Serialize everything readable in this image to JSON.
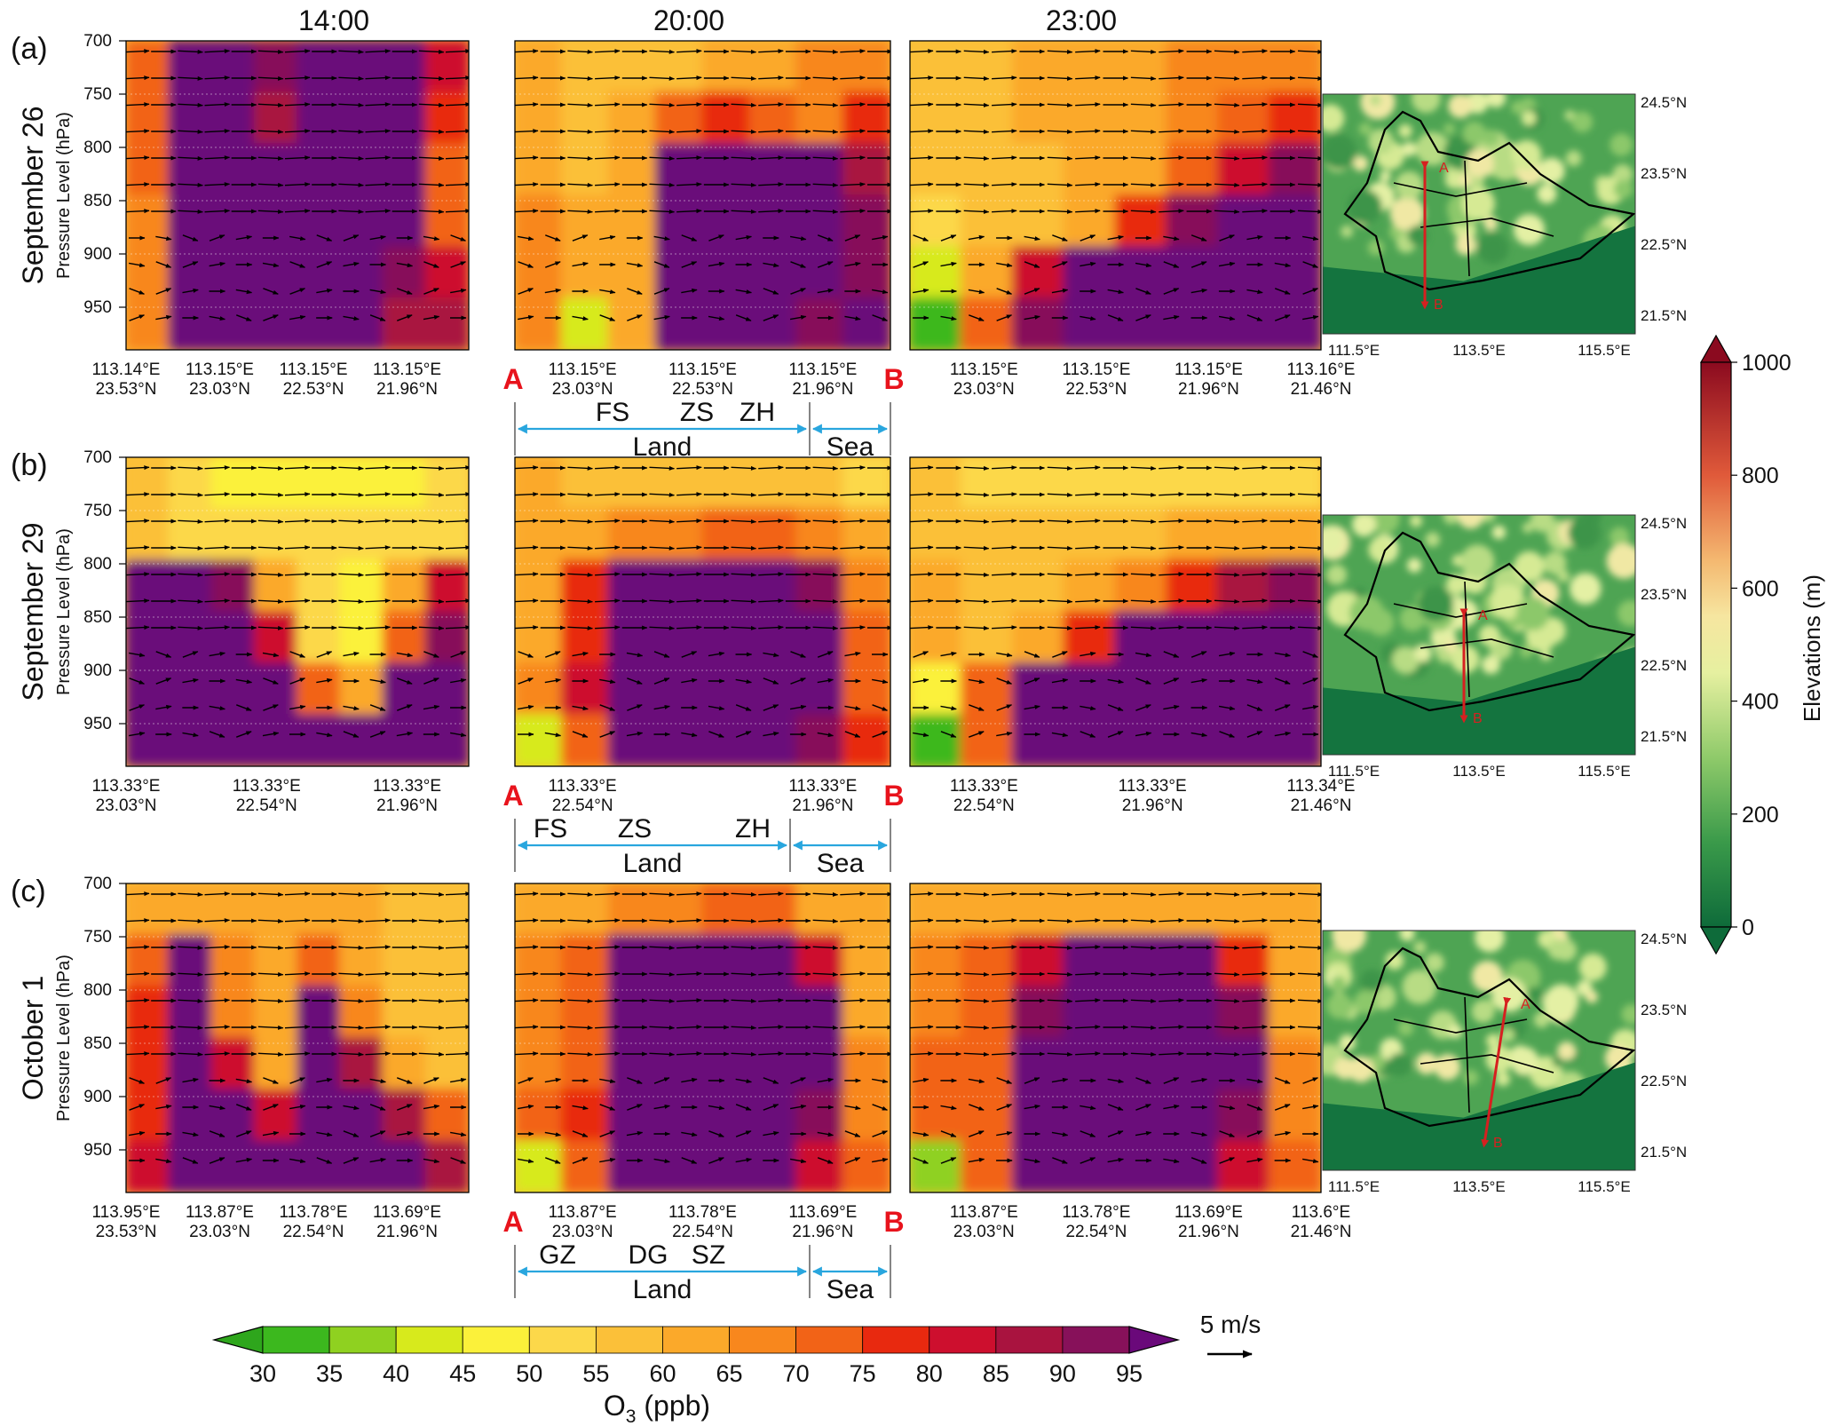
{
  "rows": [
    {
      "panel_label": "(a)",
      "date": "September 26",
      "col_xticks": [
        [
          [
            "113.14°E",
            "23.53°N"
          ],
          [
            "113.15°E",
            "23.03°N"
          ],
          [
            "113.15°E",
            "22.53°N"
          ],
          [
            "113.15°E",
            "21.96°N"
          ]
        ],
        [
          [
            "113.15°E",
            "23.03°N"
          ],
          [
            "113.15°E",
            "22.53°N"
          ],
          [
            "113.15°E",
            "21.96°N"
          ]
        ],
        [
          [
            "113.15°E",
            "23.03°N"
          ],
          [
            "113.15°E",
            "22.53°N"
          ],
          [
            "113.15°E",
            "21.96°N"
          ],
          [
            "113.16°E",
            "21.46°N"
          ]
        ]
      ],
      "land_cities": [
        "FS",
        "ZS",
        "ZH"
      ],
      "land_label": "Land",
      "sea_label": "Sea",
      "map_lats": [
        "24.5°N",
        "23.5°N",
        "22.5°N",
        "21.5°N"
      ],
      "map_lons": [
        "111.5°E",
        "113.5°E",
        "115.5°E"
      ],
      "map_point_a": "A",
      "map_point_b": "B"
    },
    {
      "panel_label": "(b)",
      "date": "September 29",
      "col_xticks": [
        [
          [
            "113.33°E",
            "23.03°N"
          ],
          [
            "113.33°E",
            "22.54°N"
          ],
          [
            "113.33°E",
            "21.96°N"
          ]
        ],
        [
          [
            "113.33°E",
            "22.54°N"
          ],
          [
            "113.33°E",
            "21.96°N"
          ]
        ],
        [
          [
            "113.33°E",
            "22.54°N"
          ],
          [
            "113.33°E",
            "21.96°N"
          ],
          [
            "113.34°E",
            "21.46°N"
          ]
        ]
      ],
      "land_cities": [
        "FS",
        "ZS",
        "ZH"
      ],
      "land_label": "Land",
      "sea_label": "Sea",
      "map_lats": [
        "24.5°N",
        "23.5°N",
        "22.5°N",
        "21.5°N"
      ],
      "map_lons": [
        "111.5°E",
        "113.5°E",
        "115.5°E"
      ],
      "map_point_a": "A",
      "map_point_b": "B"
    },
    {
      "panel_label": "(c)",
      "date": "October 1",
      "col_xticks": [
        [
          [
            "113.95°E",
            "23.53°N"
          ],
          [
            "113.87°E",
            "23.03°N"
          ],
          [
            "113.78°E",
            "22.54°N"
          ],
          [
            "113.69°E",
            "21.96°N"
          ]
        ],
        [
          [
            "113.87°E",
            "23.03°N"
          ],
          [
            "113.78°E",
            "22.54°N"
          ],
          [
            "113.69°E",
            "21.96°N"
          ]
        ],
        [
          [
            "113.87°E",
            "23.03°N"
          ],
          [
            "113.78°E",
            "22.54°N"
          ],
          [
            "113.69°E",
            "21.96°N"
          ],
          [
            "113.6°E",
            "21.46°N"
          ]
        ]
      ],
      "land_cities": [
        "GZ",
        "DG",
        "SZ"
      ],
      "land_label": "Land",
      "sea_label": "Sea",
      "map_lats": [
        "24.5°N",
        "23.5°N",
        "22.5°N",
        "21.5°N"
      ],
      "map_lons": [
        "111.5°E",
        "113.5°E",
        "115.5°E"
      ],
      "map_point_a": "A",
      "map_point_b": "B"
    }
  ],
  "columns": [
    "14:00",
    "20:00",
    "23:00"
  ],
  "section_start": "A",
  "section_end": "B",
  "ylabel": "Pressure Level (hPa)",
  "yticks": [
    "700",
    "750",
    "800",
    "850",
    "900",
    "950"
  ],
  "o3_colorbar": {
    "title_main": "O",
    "title_sub": "3",
    "title_rest": " (ppb)",
    "ticks": [
      "30",
      "35",
      "40",
      "45",
      "50",
      "55",
      "60",
      "65",
      "70",
      "75",
      "80",
      "85",
      "90",
      "95"
    ],
    "colors": [
      "#3cb81e",
      "#8fd120",
      "#d7ea1c",
      "#fbf13a",
      "#fcd84a",
      "#fbc039",
      "#fba92a",
      "#f8871d",
      "#f26317",
      "#e8290f",
      "#cd0f2e",
      "#a9133f",
      "#87115a",
      "#6a097a"
    ],
    "under_color": "#2ea61c",
    "over_color": "#6a097a"
  },
  "wind_reference": "5 m/s",
  "elev_colorbar": {
    "label": "Elevations (m)",
    "ticks": [
      "0",
      "200",
      "400",
      "600",
      "800",
      "1000"
    ],
    "low_color": "#0e6b3a",
    "high_color": "#8b0a1f"
  },
  "chart_data": [
    {
      "type": "heatmap",
      "title": "September 26",
      "series": [
        {
          "name": "14:00",
          "values": [
            [
              72,
              95,
              95,
              90,
              95,
              95,
              95,
              80
            ],
            [
              70,
              95,
              95,
              88,
              95,
              95,
              95,
              75
            ],
            [
              70,
              95,
              95,
              95,
              95,
              95,
              95,
              70
            ],
            [
              68,
              95,
              95,
              95,
              95,
              95,
              95,
              70
            ],
            [
              68,
              95,
              95,
              95,
              95,
              95,
              92,
              80
            ],
            [
              66,
              95,
              95,
              95,
              95,
              95,
              85,
              85
            ]
          ]
        },
        {
          "name": "20:00",
          "values": [
            [
              60,
              56,
              58,
              58,
              60,
              60,
              65,
              68
            ],
            [
              62,
              58,
              60,
              70,
              75,
              72,
              68,
              75
            ],
            [
              62,
              58,
              60,
              95,
              95,
              95,
              95,
              88
            ],
            [
              65,
              60,
              62,
              95,
              95,
              95,
              95,
              90
            ],
            [
              68,
              60,
              62,
              95,
              95,
              95,
              95,
              92
            ],
            [
              65,
              40,
              62,
              95,
              95,
              95,
              92,
              95
            ]
          ]
        },
        {
          "name": "23:00",
          "values": [
            [
              58,
              58,
              60,
              62,
              64,
              66,
              66,
              68
            ],
            [
              56,
              58,
              60,
              62,
              62,
              66,
              70,
              78
            ],
            [
              56,
              58,
              58,
              60,
              62,
              70,
              80,
              90
            ],
            [
              54,
              56,
              58,
              62,
              75,
              90,
              95,
              95
            ],
            [
              40,
              60,
              80,
              95,
              95,
              95,
              95,
              95
            ],
            [
              32,
              70,
              90,
              95,
              95,
              95,
              95,
              95
            ]
          ]
        }
      ]
    },
    {
      "type": "heatmap",
      "title": "September 29",
      "series": [
        {
          "name": "14:00",
          "values": [
            [
              55,
              50,
              48,
              48,
              48,
              48,
              48,
              50
            ],
            [
              58,
              52,
              50,
              50,
              50,
              50,
              52,
              54
            ],
            [
              95,
              95,
              90,
              60,
              50,
              48,
              60,
              80
            ],
            [
              95,
              95,
              95,
              80,
              52,
              48,
              70,
              90
            ],
            [
              95,
              95,
              95,
              95,
              70,
              60,
              95,
              95
            ],
            [
              95,
              95,
              95,
              95,
              95,
              95,
              95,
              95
            ]
          ]
        },
        {
          "name": "20:00",
          "values": [
            [
              60,
              58,
              56,
              56,
              56,
              56,
              56,
              54
            ],
            [
              62,
              64,
              66,
              68,
              70,
              70,
              68,
              60
            ],
            [
              62,
              75,
              95,
              95,
              95,
              95,
              90,
              65
            ],
            [
              62,
              78,
              95,
              95,
              95,
              95,
              95,
              70
            ],
            [
              66,
              80,
              95,
              95,
              95,
              95,
              95,
              72
            ],
            [
              40,
              70,
              95,
              95,
              95,
              95,
              90,
              75
            ]
          ]
        },
        {
          "name": "23:00",
          "values": [
            [
              56,
              54,
              54,
              54,
              54,
              54,
              54,
              52
            ],
            [
              58,
              56,
              56,
              56,
              58,
              60,
              62,
              64
            ],
            [
              60,
              58,
              58,
              60,
              66,
              78,
              88,
              92
            ],
            [
              60,
              58,
              62,
              75,
              95,
              95,
              95,
              95
            ],
            [
              45,
              70,
              95,
              95,
              95,
              95,
              95,
              95
            ],
            [
              34,
              70,
              95,
              95,
              95,
              95,
              95,
              95
            ]
          ]
        }
      ]
    },
    {
      "type": "heatmap",
      "title": "October 1",
      "series": [
        {
          "name": "14:00",
          "values": [
            [
              62,
              64,
              62,
              60,
              64,
              62,
              58,
              58
            ],
            [
              72,
              95,
              68,
              60,
              70,
              64,
              58,
              56
            ],
            [
              75,
              95,
              68,
              62,
              95,
              68,
              58,
              56
            ],
            [
              75,
              95,
              80,
              62,
              95,
              88,
              62,
              58
            ],
            [
              78,
              95,
              95,
              80,
              95,
              95,
              88,
              70
            ],
            [
              80,
              95,
              95,
              95,
              95,
              95,
              95,
              85
            ]
          ]
        },
        {
          "name": "20:00",
          "values": [
            [
              62,
              64,
              66,
              68,
              70,
              70,
              64,
              60
            ],
            [
              66,
              70,
              95,
              95,
              95,
              95,
              80,
              62
            ],
            [
              68,
              74,
              95,
              95,
              95,
              95,
              95,
              64
            ],
            [
              68,
              74,
              95,
              95,
              95,
              95,
              95,
              66
            ],
            [
              70,
              76,
              95,
              95,
              95,
              95,
              90,
              68
            ],
            [
              40,
              72,
              95,
              95,
              95,
              95,
              80,
              70
            ]
          ]
        },
        {
          "name": "23:00",
          "values": [
            [
              60,
              62,
              64,
              64,
              64,
              64,
              62,
              60
            ],
            [
              66,
              72,
              80,
              95,
              95,
              95,
              78,
              62
            ],
            [
              68,
              72,
              90,
              95,
              95,
              95,
              90,
              64
            ],
            [
              70,
              72,
              95,
              95,
              95,
              95,
              95,
              66
            ],
            [
              70,
              74,
              95,
              95,
              95,
              95,
              90,
              68
            ],
            [
              38,
              70,
              95,
              95,
              95,
              95,
              80,
              70
            ]
          ]
        }
      ]
    }
  ]
}
